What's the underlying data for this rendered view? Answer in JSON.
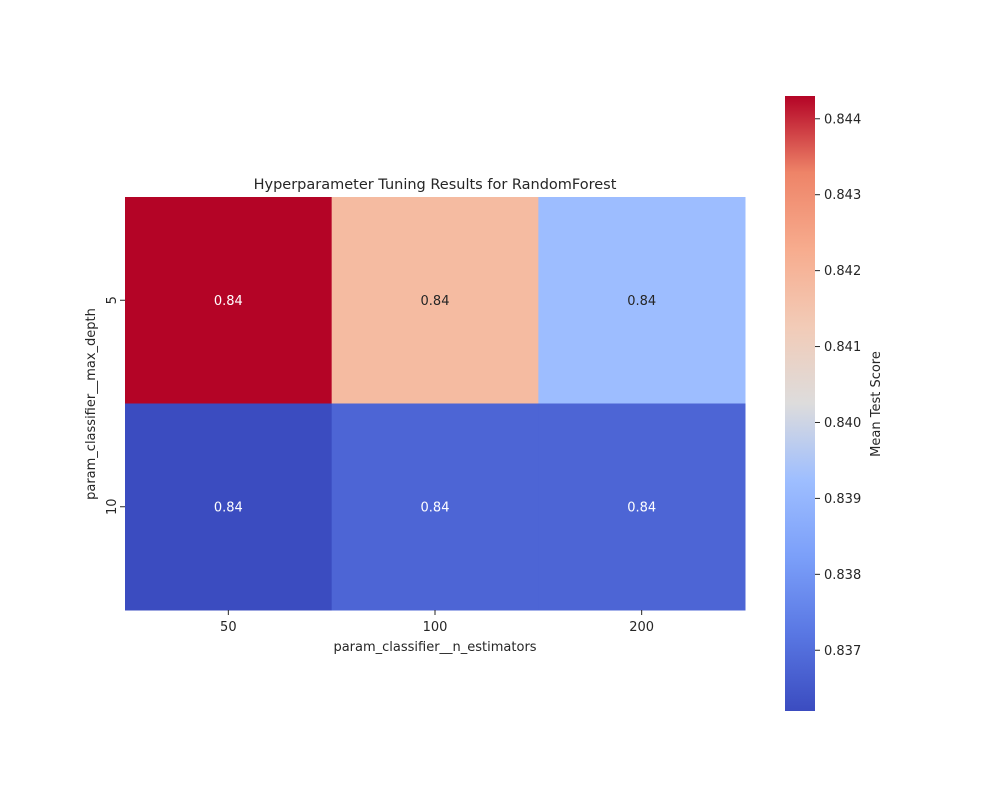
{
  "chart_data": {
    "type": "heatmap",
    "title": "Hyperparameter Tuning Results for RandomForest",
    "xlabel": "param_classifier__n_estimators",
    "ylabel": "param_classifier__max_depth",
    "x_categories": [
      "50",
      "100",
      "200"
    ],
    "y_categories": [
      "5",
      "10"
    ],
    "values": [
      [
        0.8443,
        0.8418,
        0.8392
      ],
      [
        0.8362,
        0.8368,
        0.8368
      ]
    ],
    "annotations": [
      [
        "0.84",
        "0.84",
        "0.84"
      ],
      [
        "0.84",
        "0.84",
        "0.84"
      ]
    ],
    "colormap": "coolwarm",
    "colorbar": {
      "label": "Mean Test Score",
      "min": 0.8362,
      "max": 0.8443,
      "ticks": [
        "0.837",
        "0.838",
        "0.839",
        "0.840",
        "0.841",
        "0.842",
        "0.843",
        "0.844"
      ]
    }
  }
}
